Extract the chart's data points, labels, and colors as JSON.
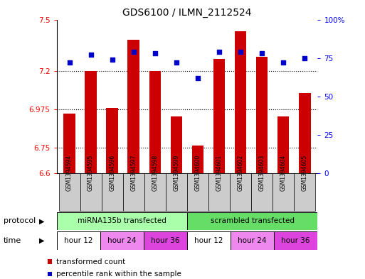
{
  "title": "GDS6100 / ILMN_2112524",
  "samples": [
    "GSM1394594",
    "GSM1394595",
    "GSM1394596",
    "GSM1394597",
    "GSM1394598",
    "GSM1394599",
    "GSM1394600",
    "GSM1394601",
    "GSM1394602",
    "GSM1394603",
    "GSM1394604",
    "GSM1394605"
  ],
  "bar_values": [
    6.95,
    7.2,
    6.98,
    7.38,
    7.2,
    6.93,
    6.76,
    7.27,
    7.43,
    7.28,
    6.93,
    7.07
  ],
  "dot_values": [
    72,
    77,
    74,
    79,
    78,
    72,
    62,
    79,
    79,
    78,
    72,
    75
  ],
  "bar_color": "#cc0000",
  "dot_color": "#0000cc",
  "ylim_left": [
    6.6,
    7.5
  ],
  "ylim_right": [
    0,
    100
  ],
  "yticks_left": [
    6.6,
    6.75,
    6.975,
    7.2,
    7.5
  ],
  "ytick_labels_left": [
    "6.6",
    "6.75",
    "6.975",
    "7.2",
    "7.5"
  ],
  "yticks_right": [
    0,
    25,
    50,
    75,
    100
  ],
  "ytick_labels_right": [
    "0",
    "25",
    "50",
    "75",
    "100%"
  ],
  "hlines": [
    6.75,
    6.975,
    7.2
  ],
  "protocol_row": [
    {
      "label": "miRNA135b transfected",
      "span": [
        0,
        6
      ],
      "color": "#aaffaa"
    },
    {
      "label": "scrambled transfected",
      "span": [
        6,
        12
      ],
      "color": "#66dd66"
    }
  ],
  "time_row": [
    {
      "label": "hour 12",
      "span": [
        0,
        2
      ],
      "color": "#ffffff"
    },
    {
      "label": "hour 24",
      "span": [
        2,
        4
      ],
      "color": "#ee88ee"
    },
    {
      "label": "hour 36",
      "span": [
        4,
        6
      ],
      "color": "#dd44dd"
    },
    {
      "label": "hour 12",
      "span": [
        6,
        8
      ],
      "color": "#ffffff"
    },
    {
      "label": "hour 24",
      "span": [
        8,
        10
      ],
      "color": "#ee88ee"
    },
    {
      "label": "hour 36",
      "span": [
        10,
        12
      ],
      "color": "#dd44dd"
    }
  ],
  "legend": [
    {
      "label": "transformed count",
      "color": "#cc0000"
    },
    {
      "label": "percentile rank within the sample",
      "color": "#0000cc"
    }
  ],
  "protocol_label": "protocol",
  "time_label": "time",
  "sample_box_color": "#cccccc",
  "background_color": "#ffffff"
}
